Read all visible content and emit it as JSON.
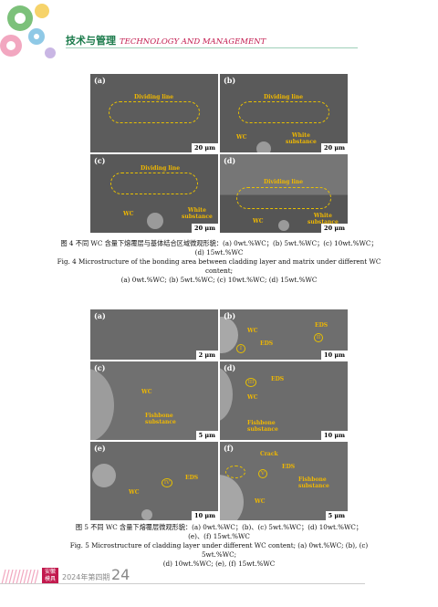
{
  "header": {
    "title_cn": "技术与管理",
    "title_en": "TECHNOLOGY AND MANAGEMENT"
  },
  "fig4": {
    "panels": {
      "a": {
        "label": "(a)",
        "scale": "20 μm",
        "dividing": "Dividing line"
      },
      "b": {
        "label": "(b)",
        "scale": "20 μm",
        "dividing": "Dividing line",
        "wc": "WC",
        "white": "White\nsubstance"
      },
      "c": {
        "label": "(c)",
        "scale": "20 μm",
        "dividing": "Dividing line",
        "wc": "WC",
        "white": "White\nsubstance"
      },
      "d": {
        "label": "(d)",
        "scale": "20 μm",
        "dividing": "Dividing line",
        "wc": "WC",
        "white": "White\nsubstance"
      }
    },
    "caption_cn_1": "图 4 不同 WC 含量下熔覆层与基体结合区域微观形貌：(a) 0wt.%WC；(b) 5wt.%WC；(c) 10wt.%WC；",
    "caption_cn_2": "(d) 15wt.%WC",
    "caption_en_1": "Fig. 4 Microstructure of the bonding area between cladding layer and matrix under different WC content;",
    "caption_en_2": "(a) 0wt.%WC; (b) 5wt.%WC; (c) 10wt.%WC; (d) 15wt.%WC"
  },
  "fig5": {
    "panels": {
      "a": {
        "label": "(a)",
        "scale": "2 μm"
      },
      "b": {
        "label": "(b)",
        "scale": "10 μm",
        "wc": "WC",
        "eds1": "EDS",
        "eds2": "EDS",
        "c1": "I",
        "c2": "II"
      },
      "c": {
        "label": "(c)",
        "scale": "5 μm",
        "wc": "WC",
        "fish": "Fishbone\nsubstance"
      },
      "d": {
        "label": "(d)",
        "scale": "10 μm",
        "eds": "EDS",
        "wc": "WC",
        "fish": "Fishbone\nsubstance",
        "c3": "III"
      },
      "e": {
        "label": "(e)",
        "scale": "10 μm",
        "eds": "EDS",
        "wc": "WC",
        "c4": "IV"
      },
      "f": {
        "label": "(f)",
        "scale": "5 μm",
        "crack": "Crack",
        "eds": "EDS",
        "wc": "WC",
        "fish": "Fishbone\nsubstance",
        "c5": "V"
      }
    },
    "caption_cn_1": "图 5 不同 WC 含量下熔覆层微观形貌：(a) 0wt.%WC；(b)、(c) 5wt.%WC；(d) 10wt.%WC；",
    "caption_cn_2": "(e)、(f) 15wt.%WC",
    "caption_en_1": "Fig. 5 Microstructure of cladding layer under different WC content; (a) 0wt.%WC; (b), (c) 5wt.%WC;",
    "caption_en_2": "(d) 10wt.%WC; (e), (f) 15wt.%WC"
  },
  "footer": {
    "tag": "安徽\n模具",
    "issue": "2024年第四期",
    "page": "24"
  },
  "colors": {
    "accent_green": "#1a7a4a",
    "accent_red": "#c21a4e",
    "annotation": "#f0b800"
  }
}
